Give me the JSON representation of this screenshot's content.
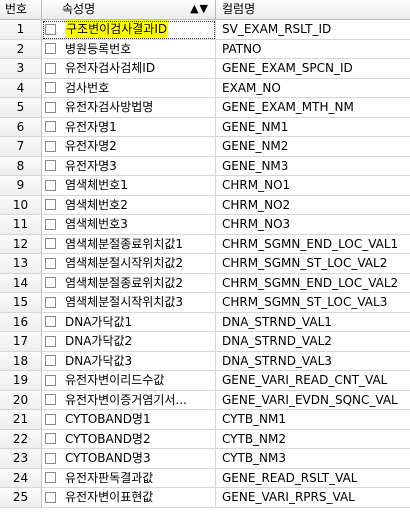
{
  "header": {
    "num": "번호",
    "attr": "속성명",
    "col": "컬럼명",
    "sort_glyph": "▲▼"
  },
  "selected_index": 0,
  "rows": [
    {
      "num": "1",
      "attr": "구조변이검사결과ID",
      "col": "SV_EXAM_RSLT_ID"
    },
    {
      "num": "2",
      "attr": "병원등록번호",
      "col": "PATNO"
    },
    {
      "num": "3",
      "attr": "유전자검사검체ID",
      "col": "GENE_EXAM_SPCN_ID"
    },
    {
      "num": "4",
      "attr": "검사번호",
      "col": "EXAM_NO"
    },
    {
      "num": "5",
      "attr": "유전자검사방법명",
      "col": "GENE_EXAM_MTH_NM"
    },
    {
      "num": "6",
      "attr": "유전자명1",
      "col": "GENE_NM1"
    },
    {
      "num": "7",
      "attr": "유전자명2",
      "col": "GENE_NM2"
    },
    {
      "num": "8",
      "attr": "유전자명3",
      "col": "GENE_NM3"
    },
    {
      "num": "9",
      "attr": "염색체번호1",
      "col": "CHRM_NO1"
    },
    {
      "num": "10",
      "attr": "염색체번호2",
      "col": "CHRM_NO2"
    },
    {
      "num": "11",
      "attr": "염색체번호3",
      "col": "CHRM_NO3"
    },
    {
      "num": "12",
      "attr": "염색체분절종료위치값1",
      "col": "CHRM_SGMN_END_LOC_VAL1"
    },
    {
      "num": "13",
      "attr": "염색체분절시작위치값2",
      "col": "CHRM_SGMN_ST_LOC_VAL2"
    },
    {
      "num": "14",
      "attr": "염색체분절종료위치값2",
      "col": "CHRM_SGMN_END_LOC_VAL2"
    },
    {
      "num": "15",
      "attr": "염색체분절시작위치값3",
      "col": "CHRM_SGMN_ST_LOC_VAL3"
    },
    {
      "num": "16",
      "attr": "DNA가닥값1",
      "col": "DNA_STRND_VAL1"
    },
    {
      "num": "17",
      "attr": "DNA가닥값2",
      "col": "DNA_STRND_VAL2"
    },
    {
      "num": "18",
      "attr": "DNA가닥값3",
      "col": "DNA_STRND_VAL3"
    },
    {
      "num": "19",
      "attr": "유전자변이리드수값",
      "col": "GENE_VARI_READ_CNT_VAL"
    },
    {
      "num": "20",
      "attr": "유전자변이증거염기서...",
      "col": "GENE_VARI_EVDN_SQNC_VAL"
    },
    {
      "num": "21",
      "attr": "CYTOBAND명1",
      "col": "CYTB_NM1"
    },
    {
      "num": "22",
      "attr": "CYTOBAND명2",
      "col": "CYTB_NM2"
    },
    {
      "num": "23",
      "attr": "CYTOBAND명3",
      "col": "CYTB_NM3"
    },
    {
      "num": "24",
      "attr": "유전자판독결과값",
      "col": "GENE_READ_RSLT_VAL"
    },
    {
      "num": "25",
      "attr": "유전자변이표현값",
      "col": "GENE_VARI_RPRS_VAL"
    }
  ]
}
